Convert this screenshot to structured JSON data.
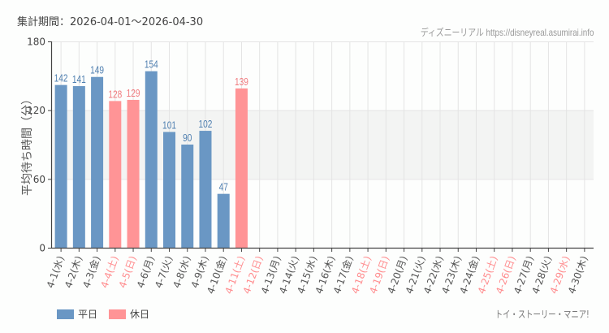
{
  "header": {
    "period_label": "集計期間：2026-04-01〜2026-04-30",
    "credit": "ディズニーリアル https://disneyreal.asumirai.info"
  },
  "footer": {
    "attraction_name": "トイ・ストーリー・マニア!"
  },
  "colors": {
    "weekday": "#6a97c4",
    "holiday": "#ff9496",
    "weekday_label": "#4f7fb0",
    "holiday_label": "#f07a7e",
    "holiday_tick": "#ff8c8e",
    "band": "#f3f4f3",
    "grid": "#e4e4e4"
  },
  "chart_data": {
    "type": "bar",
    "title": "",
    "xlabel": "",
    "ylabel": "平均待ち時間（分）",
    "ylim": [
      0,
      180
    ],
    "yticks": [
      0,
      60,
      120,
      180
    ],
    "grid": true,
    "highlight_band": [
      60,
      120
    ],
    "legend": [
      {
        "name": "平日",
        "color": "#6a97c4"
      },
      {
        "name": "休日",
        "color": "#ff9496"
      }
    ],
    "legend_position": "bottom-left",
    "categories": [
      "4-1(水)",
      "4-2(木)",
      "4-3(金)",
      "4-4(土)",
      "4-5(日)",
      "4-6(月)",
      "4-7(火)",
      "4-8(水)",
      "4-9(木)",
      "4-10(金)",
      "4-11(土)",
      "4-12(日)",
      "4-13(月)",
      "4-14(火)",
      "4-15(水)",
      "4-16(木)",
      "4-17(金)",
      "4-18(土)",
      "4-19(日)",
      "4-20(月)",
      "4-21(火)",
      "4-22(水)",
      "4-23(木)",
      "4-24(金)",
      "4-25(土)",
      "4-26(日)",
      "4-27(月)",
      "4-28(火)",
      "4-29(水)",
      "4-30(木)"
    ],
    "holiday": [
      false,
      false,
      false,
      true,
      true,
      false,
      false,
      false,
      false,
      false,
      true,
      true,
      false,
      false,
      false,
      false,
      false,
      true,
      true,
      false,
      false,
      false,
      false,
      false,
      true,
      true,
      false,
      false,
      true,
      false
    ],
    "values": [
      142,
      141,
      149,
      128,
      129,
      154,
      101,
      90,
      102,
      47,
      139,
      null,
      null,
      null,
      null,
      null,
      null,
      null,
      null,
      null,
      null,
      null,
      null,
      null,
      null,
      null,
      null,
      null,
      null,
      null
    ]
  }
}
